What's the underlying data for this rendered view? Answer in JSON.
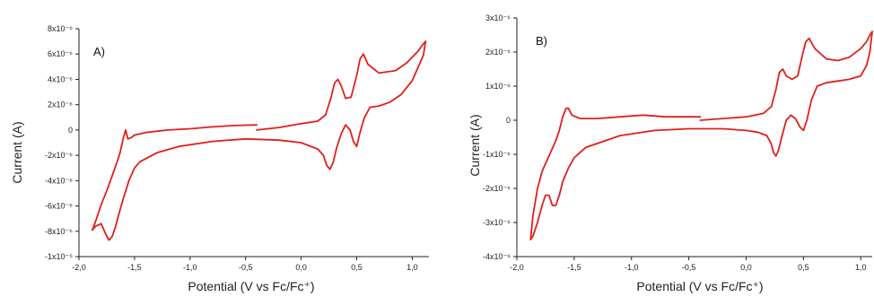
{
  "chart_data": [
    {
      "type": "line",
      "panel_label": "A)",
      "xlabel": "Potential (V vs Fc/Fc⁺)",
      "ylabel": "Current (A)",
      "xlim": [
        -2.0,
        1.15
      ],
      "ylim": [
        -1e-05,
        8e-06
      ],
      "xticks": [
        {
          "value": -2.0,
          "label": "-2,0"
        },
        {
          "value": -1.5,
          "label": "-1,5"
        },
        {
          "value": -1.0,
          "label": "-1,0"
        },
        {
          "value": -0.5,
          "label": "-0,5"
        },
        {
          "value": 0.0,
          "label": "0,0"
        },
        {
          "value": 0.5,
          "label": "0,5"
        },
        {
          "value": 1.0,
          "label": "1,0"
        }
      ],
      "yticks": [
        {
          "value": 8e-06,
          "label": "8x10⁻⁶"
        },
        {
          "value": 6e-06,
          "label": "6x10⁻⁶"
        },
        {
          "value": 4e-06,
          "label": "4x10⁻⁶"
        },
        {
          "value": 2e-06,
          "label": "2x10⁻⁶"
        },
        {
          "value": 0,
          "label": "0"
        },
        {
          "value": -2e-06,
          "label": "-2x10⁻⁶"
        },
        {
          "value": -4e-06,
          "label": "-4x10⁻⁶"
        },
        {
          "value": -6e-06,
          "label": "-6x10⁻⁶"
        },
        {
          "value": -8e-06,
          "label": "-8x10⁻⁶"
        },
        {
          "value": -1e-05,
          "label": "-1x10⁻⁵"
        }
      ],
      "grid": false,
      "color": "#e0201c",
      "series": [
        {
          "segment": "upper-left",
          "x": [
            -1.88,
            -1.85,
            -1.8,
            -1.75,
            -1.7,
            -1.66,
            -1.63,
            -1.6,
            -1.58,
            -1.56,
            -1.53,
            -1.5,
            -1.4,
            -1.2,
            -1.0,
            -0.8,
            -0.6,
            -0.4
          ],
          "y": [
            -7.9e-06,
            -7.2e-06,
            -5.9e-06,
            -4.8e-06,
            -3.6e-06,
            -2.6e-06,
            -1.8e-06,
            -6e-07,
            0.0,
            -7e-07,
            -6e-07,
            -4e-07,
            -2e-07,
            0.0,
            1e-07,
            2.5e-07,
            3.5e-07,
            4e-07
          ]
        },
        {
          "segment": "upper-right",
          "x": [
            -0.4,
            -0.2,
            0.0,
            0.15,
            0.22,
            0.27,
            0.3,
            0.33,
            0.36,
            0.4,
            0.45,
            0.5,
            0.53,
            0.56,
            0.6,
            0.7,
            0.85,
            0.95,
            1.05,
            1.1,
            1.12
          ],
          "y": [
            0.0,
            2e-07,
            5e-07,
            7e-07,
            1.2e-06,
            2.6e-06,
            3.7e-06,
            4e-06,
            3.5e-06,
            2.5e-06,
            2.6e-06,
            4.3e-06,
            5.6e-06,
            6e-06,
            5.2e-06,
            4.5e-06,
            4.7e-06,
            5.3e-06,
            6.2e-06,
            6.8e-06,
            7e-06
          ]
        },
        {
          "segment": "lower",
          "x": [
            1.12,
            1.1,
            1.0,
            0.9,
            0.8,
            0.7,
            0.62,
            0.57,
            0.53,
            0.5,
            0.47,
            0.44,
            0.4,
            0.36,
            0.32,
            0.29,
            0.26,
            0.23,
            0.2,
            0.15,
            0.0,
            -0.2,
            -0.5,
            -0.8,
            -1.1,
            -1.3,
            -1.45,
            -1.5,
            -1.55,
            -1.6,
            -1.64,
            -1.67,
            -1.7,
            -1.73,
            -1.76,
            -1.8,
            -1.85,
            -1.88
          ],
          "y": [
            7e-06,
            5.9e-06,
            3.9e-06,
            2.8e-06,
            2.2e-06,
            1.9e-06,
            1.8e-06,
            1e-06,
            -2e-07,
            -1.3e-06,
            -9e-07,
            0.0,
            4e-07,
            -3e-07,
            -1.4e-06,
            -2.5e-06,
            -3.1e-06,
            -2.8e-06,
            -2e-06,
            -1.5e-06,
            -1e-06,
            -8e-07,
            -7e-07,
            -9e-07,
            -1.3e-06,
            -1.8e-06,
            -2.5e-06,
            -3e-06,
            -4e-06,
            -5.4e-06,
            -6.6e-06,
            -7.6e-06,
            -8.4e-06,
            -8.7e-06,
            -8.2e-06,
            -7.4e-06,
            -7.6e-06,
            -7.9e-06
          ]
        }
      ]
    },
    {
      "type": "line",
      "panel_label": "B)",
      "xlabel": "Potential (V vs Fc/Fc⁺)",
      "ylabel": "Current (A)",
      "xlim": [
        -2.0,
        1.1
      ],
      "ylim": [
        -4e-06,
        3e-06
      ],
      "xticks": [
        {
          "value": -2.0,
          "label": "-2,0"
        },
        {
          "value": -1.5,
          "label": "-1,5"
        },
        {
          "value": -1.0,
          "label": "-1,0"
        },
        {
          "value": -0.5,
          "label": "-0,5"
        },
        {
          "value": 0.0,
          "label": "0,0"
        },
        {
          "value": 0.5,
          "label": "0,5"
        },
        {
          "value": 1.0,
          "label": "1,0"
        }
      ],
      "yticks": [
        {
          "value": 3e-06,
          "label": "3x10⁻⁶"
        },
        {
          "value": 2e-06,
          "label": "2x10⁻⁶"
        },
        {
          "value": 1e-06,
          "label": "1x10⁻⁶"
        },
        {
          "value": 0,
          "label": "0"
        },
        {
          "value": -1e-06,
          "label": "-1x10⁻⁶"
        },
        {
          "value": -2e-06,
          "label": "-2x10⁻⁶"
        },
        {
          "value": -3e-06,
          "label": "-3x10⁻⁶"
        },
        {
          "value": -4e-06,
          "label": "-4x10⁻⁶"
        }
      ],
      "grid": false,
      "color": "#e0201c",
      "series": [
        {
          "segment": "upper-left",
          "x": [
            -1.88,
            -1.86,
            -1.82,
            -1.78,
            -1.74,
            -1.7,
            -1.66,
            -1.63,
            -1.6,
            -1.57,
            -1.55,
            -1.52,
            -1.45,
            -1.3,
            -1.1,
            -0.9,
            -0.7,
            -0.5,
            -0.4
          ],
          "y": [
            -3.5e-06,
            -2.8e-06,
            -2e-06,
            -1.5e-06,
            -1.2e-06,
            -9e-07,
            -6e-07,
            -3e-07,
            1e-07,
            3.5e-07,
            3.5e-07,
            1.5e-07,
            5e-08,
            5e-08,
            1e-07,
            1.5e-07,
            1e-07,
            1e-07,
            1e-07
          ]
        },
        {
          "segment": "upper-right",
          "x": [
            -0.4,
            -0.2,
            0.0,
            0.15,
            0.22,
            0.26,
            0.29,
            0.32,
            0.35,
            0.4,
            0.45,
            0.49,
            0.52,
            0.55,
            0.6,
            0.7,
            0.8,
            0.9,
            1.0,
            1.05,
            1.08,
            1.1
          ],
          "y": [
            0.0,
            5e-08,
            1e-07,
            2e-07,
            4e-07,
            9e-07,
            1.4e-06,
            1.5e-06,
            1.3e-06,
            1.2e-06,
            1.3e-06,
            1.9e-06,
            2.3e-06,
            2.4e-06,
            2.1e-06,
            1.8e-06,
            1.75e-06,
            1.85e-06,
            2.1e-06,
            2.3e-06,
            2.5e-06,
            2.6e-06
          ]
        },
        {
          "segment": "lower",
          "x": [
            1.1,
            1.08,
            1.05,
            1.0,
            0.9,
            0.8,
            0.7,
            0.62,
            0.57,
            0.53,
            0.5,
            0.47,
            0.43,
            0.39,
            0.35,
            0.31,
            0.28,
            0.26,
            0.24,
            0.22,
            0.18,
            0.1,
            0.0,
            -0.2,
            -0.5,
            -0.8,
            -1.1,
            -1.4,
            -1.5,
            -1.55,
            -1.6,
            -1.63,
            -1.66,
            -1.69,
            -1.72,
            -1.75,
            -1.78,
            -1.82,
            -1.86,
            -1.88
          ],
          "y": [
            2.6e-06,
            2e-06,
            1.6e-06,
            1.3e-06,
            1.2e-06,
            1.15e-06,
            1.1e-06,
            1e-06,
            6e-07,
            0.0,
            -3e-07,
            -2e-07,
            5e-08,
            1.5e-07,
            0.0,
            -5e-07,
            -9e-07,
            -1.05e-06,
            -9.5e-07,
            -7e-07,
            -4.5e-07,
            -3.5e-07,
            -3e-07,
            -2.5e-07,
            -2.5e-07,
            -3e-07,
            -4.5e-07,
            -8e-07,
            -1.1e-06,
            -1.4e-06,
            -1.8e-06,
            -2.2e-06,
            -2.5e-06,
            -2.5e-06,
            -2.2e-06,
            -2.2e-06,
            -2.5e-06,
            -3e-06,
            -3.4e-06,
            -3.5e-06
          ]
        }
      ]
    }
  ]
}
